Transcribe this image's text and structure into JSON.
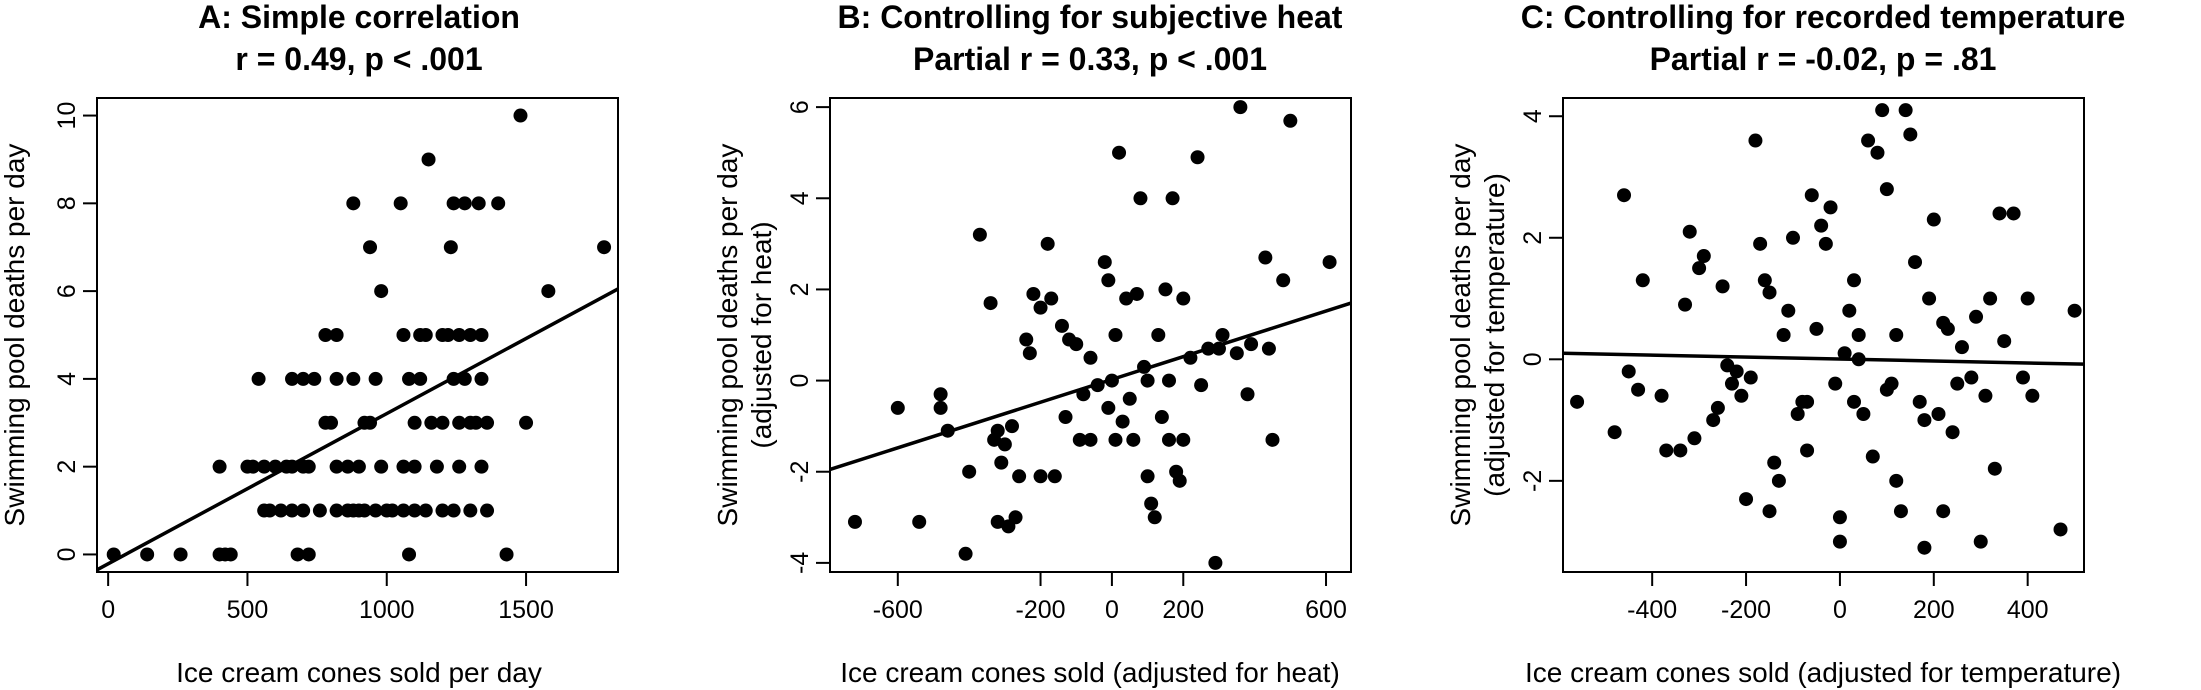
{
  "chart_data": [
    {
      "type": "scatter",
      "title": "A: Simple correlation",
      "subtitle": "r = 0.49, p < .001",
      "xlabel": "Ice cream cones sold per day",
      "ylabel": [
        "Swimming pool deaths per day"
      ],
      "xlim": [
        -40,
        1830
      ],
      "ylim": [
        -0.4,
        10.4
      ],
      "xticks": [
        0,
        500,
        1000,
        1500
      ],
      "yticks": [
        0,
        2,
        4,
        6,
        8,
        10
      ],
      "regression_line": [
        [
          -40,
          -0.35
        ],
        [
          1830,
          6.05
        ]
      ],
      "points": [
        [
          20,
          0
        ],
        [
          140,
          0
        ],
        [
          260,
          0
        ],
        [
          400,
          0
        ],
        [
          420,
          0
        ],
        [
          440,
          0
        ],
        [
          1080,
          0
        ],
        [
          1430,
          0
        ],
        [
          680,
          0
        ],
        [
          720,
          0
        ],
        [
          400,
          2
        ],
        [
          500,
          2
        ],
        [
          520,
          2
        ],
        [
          560,
          2
        ],
        [
          600,
          2
        ],
        [
          640,
          2
        ],
        [
          660,
          2
        ],
        [
          700,
          2
        ],
        [
          720,
          2
        ],
        [
          820,
          2
        ],
        [
          860,
          2
        ],
        [
          900,
          2
        ],
        [
          980,
          2
        ],
        [
          1060,
          2
        ],
        [
          1100,
          2
        ],
        [
          1180,
          2
        ],
        [
          1260,
          2
        ],
        [
          1340,
          2
        ],
        [
          560,
          1
        ],
        [
          580,
          1
        ],
        [
          620,
          1
        ],
        [
          660,
          1
        ],
        [
          700,
          1
        ],
        [
          760,
          1
        ],
        [
          820,
          1
        ],
        [
          860,
          1
        ],
        [
          880,
          1
        ],
        [
          900,
          1
        ],
        [
          920,
          1
        ],
        [
          960,
          1
        ],
        [
          1000,
          1
        ],
        [
          1020,
          1
        ],
        [
          1060,
          1
        ],
        [
          1100,
          1
        ],
        [
          1140,
          1
        ],
        [
          1200,
          1
        ],
        [
          1240,
          1
        ],
        [
          1300,
          1
        ],
        [
          1360,
          1
        ],
        [
          540,
          4
        ],
        [
          660,
          4
        ],
        [
          700,
          4
        ],
        [
          740,
          4
        ],
        [
          820,
          4
        ],
        [
          880,
          4
        ],
        [
          960,
          4
        ],
        [
          1080,
          4
        ],
        [
          1120,
          4
        ],
        [
          1240,
          4
        ],
        [
          1280,
          4
        ],
        [
          1340,
          4
        ],
        [
          780,
          5
        ],
        [
          820,
          5
        ],
        [
          1060,
          5
        ],
        [
          1120,
          5
        ],
        [
          1140,
          5
        ],
        [
          1200,
          5
        ],
        [
          1220,
          5
        ],
        [
          1260,
          5
        ],
        [
          1300,
          5
        ],
        [
          1340,
          5
        ],
        [
          780,
          3
        ],
        [
          800,
          3
        ],
        [
          920,
          3
        ],
        [
          940,
          3
        ],
        [
          1100,
          3
        ],
        [
          1160,
          3
        ],
        [
          1200,
          3
        ],
        [
          1260,
          3
        ],
        [
          1300,
          3
        ],
        [
          1320,
          3
        ],
        [
          1360,
          3
        ],
        [
          1500,
          3
        ],
        [
          980,
          6
        ],
        [
          1580,
          6
        ],
        [
          940,
          7
        ],
        [
          1230,
          7
        ],
        [
          1780,
          7
        ],
        [
          880,
          8
        ],
        [
          1050,
          8
        ],
        [
          1240,
          8
        ],
        [
          1280,
          8
        ],
        [
          1330,
          8
        ],
        [
          1400,
          8
        ],
        [
          1150,
          9
        ],
        [
          1480,
          10
        ]
      ]
    },
    {
      "type": "scatter",
      "title": "B: Controlling for subjective heat",
      "subtitle": "Partial r = 0.33, p < .001",
      "xlabel": "Ice cream cones sold (adjusted for heat)",
      "ylabel": [
        "Swimming pool deaths per day",
        "(adjusted for heat)"
      ],
      "xlim": [
        -790,
        670
      ],
      "ylim": [
        -4.2,
        6.2
      ],
      "xticks": [
        -600,
        -200,
        0,
        200,
        600
      ],
      "yticks": [
        -4,
        -2,
        0,
        2,
        4,
        6
      ],
      "regression_line": [
        [
          -790,
          -1.95
        ],
        [
          670,
          1.7
        ]
      ],
      "points": [
        [
          -720,
          -3.1
        ],
        [
          -600,
          -0.6
        ],
        [
          -540,
          -3.1
        ],
        [
          -480,
          -0.3
        ],
        [
          -480,
          -0.6
        ],
        [
          -460,
          -1.1
        ],
        [
          -410,
          -3.8
        ],
        [
          -400,
          -2.0
        ],
        [
          -370,
          3.2
        ],
        [
          -340,
          1.7
        ],
        [
          -330,
          -1.3
        ],
        [
          -320,
          -1.1
        ],
        [
          -320,
          -3.1
        ],
        [
          -310,
          -1.8
        ],
        [
          -300,
          -1.4
        ],
        [
          -290,
          -3.2
        ],
        [
          -280,
          -1.0
        ],
        [
          -270,
          -3.0
        ],
        [
          -260,
          -2.1
        ],
        [
          -240,
          0.9
        ],
        [
          -230,
          0.6
        ],
        [
          -220,
          1.9
        ],
        [
          -200,
          1.6
        ],
        [
          -180,
          3.0
        ],
        [
          -170,
          1.8
        ],
        [
          -160,
          -2.1
        ],
        [
          -140,
          1.2
        ],
        [
          -130,
          -0.8
        ],
        [
          -120,
          0.9
        ],
        [
          -100,
          0.8
        ],
        [
          -90,
          -1.3
        ],
        [
          -80,
          -0.3
        ],
        [
          -60,
          0.5
        ],
        [
          -40,
          -0.1
        ],
        [
          -20,
          2.6
        ],
        [
          -10,
          2.2
        ],
        [
          -10,
          -0.6
        ],
        [
          0,
          0.0
        ],
        [
          10,
          1.0
        ],
        [
          10,
          -1.3
        ],
        [
          20,
          5.0
        ],
        [
          30,
          -0.9
        ],
        [
          40,
          1.8
        ],
        [
          50,
          -0.4
        ],
        [
          60,
          -1.3
        ],
        [
          70,
          1.9
        ],
        [
          80,
          4.0
        ],
        [
          90,
          0.3
        ],
        [
          100,
          -2.1
        ],
        [
          110,
          -2.7
        ],
        [
          120,
          -3.0
        ],
        [
          130,
          1.0
        ],
        [
          140,
          -0.8
        ],
        [
          150,
          2.0
        ],
        [
          160,
          -1.3
        ],
        [
          170,
          4.0
        ],
        [
          180,
          -2.0
        ],
        [
          190,
          -2.2
        ],
        [
          200,
          -1.3
        ],
        [
          220,
          0.5
        ],
        [
          240,
          4.9
        ],
        [
          250,
          -0.1
        ],
        [
          270,
          0.7
        ],
        [
          290,
          -4.0
        ],
        [
          300,
          0.7
        ],
        [
          310,
          1.0
        ],
        [
          350,
          0.6
        ],
        [
          360,
          6.0
        ],
        [
          380,
          -0.3
        ],
        [
          390,
          0.8
        ],
        [
          430,
          2.7
        ],
        [
          440,
          0.7
        ],
        [
          450,
          -1.3
        ],
        [
          480,
          2.2
        ],
        [
          500,
          5.7
        ],
        [
          610,
          2.6
        ],
        [
          -200,
          -2.1
        ],
        [
          -60,
          -1.3
        ],
        [
          100,
          0.0
        ],
        [
          160,
          0.0
        ],
        [
          200,
          1.8
        ]
      ]
    },
    {
      "type": "scatter",
      "title": "C: Controlling for recorded temperature",
      "subtitle": "Partial r = -0.02, p = .81",
      "xlabel": "Ice cream cones sold (adjusted for temperature)",
      "ylabel": [
        "Swimming pool deaths per day",
        "(adjusted for temperature)"
      ],
      "xlim": [
        -590,
        520
      ],
      "ylim": [
        -3.5,
        4.3
      ],
      "xticks": [
        -400,
        -200,
        0,
        200,
        400
      ],
      "yticks": [
        -2,
        0,
        2,
        4
      ],
      "regression_line": [
        [
          -590,
          0.1
        ],
        [
          520,
          -0.08
        ]
      ],
      "points": [
        [
          -560,
          -0.7
        ],
        [
          -480,
          -1.2
        ],
        [
          -460,
          2.7
        ],
        [
          -450,
          -0.2
        ],
        [
          -430,
          -0.5
        ],
        [
          -420,
          1.3
        ],
        [
          -380,
          -0.6
        ],
        [
          -370,
          -1.5
        ],
        [
          -340,
          -1.5
        ],
        [
          -330,
          0.9
        ],
        [
          -320,
          2.1
        ],
        [
          -310,
          -1.3
        ],
        [
          -300,
          1.5
        ],
        [
          -290,
          1.7
        ],
        [
          -270,
          -1.0
        ],
        [
          -260,
          -0.8
        ],
        [
          -250,
          1.2
        ],
        [
          -240,
          -0.1
        ],
        [
          -230,
          -0.4
        ],
        [
          -220,
          -0.2
        ],
        [
          -210,
          -0.6
        ],
        [
          -200,
          -2.3
        ],
        [
          -190,
          -0.3
        ],
        [
          -180,
          3.6
        ],
        [
          -170,
          1.9
        ],
        [
          -160,
          1.3
        ],
        [
          -150,
          1.1
        ],
        [
          -140,
          -1.7
        ],
        [
          -130,
          -2.0
        ],
        [
          -120,
          0.4
        ],
        [
          -110,
          0.8
        ],
        [
          -100,
          2.0
        ],
        [
          -90,
          -0.9
        ],
        [
          -80,
          -0.7
        ],
        [
          -70,
          -1.5
        ],
        [
          -60,
          2.7
        ],
        [
          -50,
          0.5
        ],
        [
          -40,
          2.2
        ],
        [
          -30,
          1.9
        ],
        [
          -20,
          2.5
        ],
        [
          -10,
          -0.4
        ],
        [
          0,
          -2.6
        ],
        [
          0,
          -3.0
        ],
        [
          10,
          0.1
        ],
        [
          20,
          0.8
        ],
        [
          30,
          -0.7
        ],
        [
          40,
          0.4
        ],
        [
          50,
          -0.9
        ],
        [
          60,
          3.6
        ],
        [
          70,
          -1.6
        ],
        [
          80,
          3.4
        ],
        [
          90,
          4.1
        ],
        [
          100,
          2.8
        ],
        [
          110,
          -0.4
        ],
        [
          120,
          0.4
        ],
        [
          130,
          -2.5
        ],
        [
          140,
          4.1
        ],
        [
          150,
          3.7
        ],
        [
          160,
          1.6
        ],
        [
          170,
          -0.7
        ],
        [
          180,
          -3.1
        ],
        [
          190,
          1.0
        ],
        [
          200,
          2.3
        ],
        [
          210,
          -0.9
        ],
        [
          220,
          -2.5
        ],
        [
          230,
          0.5
        ],
        [
          240,
          -1.2
        ],
        [
          250,
          -0.4
        ],
        [
          260,
          0.2
        ],
        [
          280,
          -0.3
        ],
        [
          290,
          0.7
        ],
        [
          300,
          -3.0
        ],
        [
          310,
          -0.6
        ],
        [
          320,
          1.0
        ],
        [
          330,
          -1.8
        ],
        [
          340,
          2.4
        ],
        [
          350,
          0.3
        ],
        [
          370,
          2.4
        ],
        [
          390,
          -0.3
        ],
        [
          400,
          1.0
        ],
        [
          410,
          -0.6
        ],
        [
          470,
          -2.8
        ],
        [
          500,
          0.8
        ],
        [
          -70,
          -0.7
        ],
        [
          40,
          0.0
        ],
        [
          100,
          -0.5
        ],
        [
          180,
          -1.0
        ],
        [
          220,
          0.6
        ],
        [
          -150,
          -2.5
        ],
        [
          120,
          -2.0
        ],
        [
          30,
          1.3
        ]
      ]
    }
  ]
}
